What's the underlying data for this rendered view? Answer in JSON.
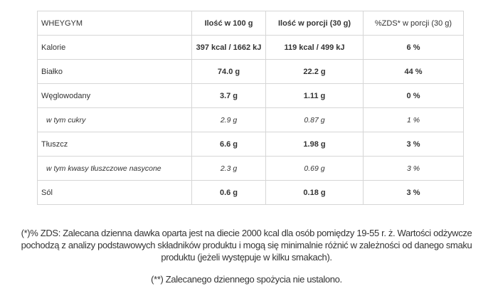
{
  "table": {
    "headers": [
      "WHEYGYM",
      "Ilość w 100 g",
      "Ilość w porcji (30 g)",
      "%ZDS* w porcji (30 g)"
    ],
    "rows": [
      {
        "label": "Kalorie",
        "per100": "397 kcal / 1662 kJ",
        "perPortion": "119 kcal / 499 kJ",
        "zds": "6 %",
        "sub": false
      },
      {
        "label": "Białko",
        "per100": "74.0 g",
        "perPortion": "22.2 g",
        "zds": "44 %",
        "sub": false
      },
      {
        "label": "Węglowodany",
        "per100": "3.7 g",
        "perPortion": "1.11 g",
        "zds": "0 %",
        "sub": false
      },
      {
        "label": "w tym cukry",
        "per100": "2.9 g",
        "perPortion": "0.87 g",
        "zds": "1 %",
        "sub": true
      },
      {
        "label": "Tłuszcz",
        "per100": "6.6 g",
        "perPortion": "1.98 g",
        "zds": "3 %",
        "sub": false
      },
      {
        "label": "w tym kwasy tłuszczowe nasycone",
        "per100": "2.3 g",
        "perPortion": "0.69 g",
        "zds": "3 %",
        "sub": true
      },
      {
        "label": "Sól",
        "per100": "0.6 g",
        "perPortion": "0.18 g",
        "zds": "3 %",
        "sub": false
      }
    ]
  },
  "footer": {
    "note1_lines": [
      "(*)% ZDS: Zalecana dzienna dawka oparta jest na diecie 2000 kcal dla osób pomiędzy 19-55 r. ż. Wartości odżywcze",
      "pochodzą z analizy podstawowych składników produktu i mogą się minimalnie różnić w zależności od danego smaku",
      "produktu (jeżeli występuje w kilku smakach)."
    ],
    "note2": "(**) Zalecanego dziennego spożycia nie ustalono."
  }
}
